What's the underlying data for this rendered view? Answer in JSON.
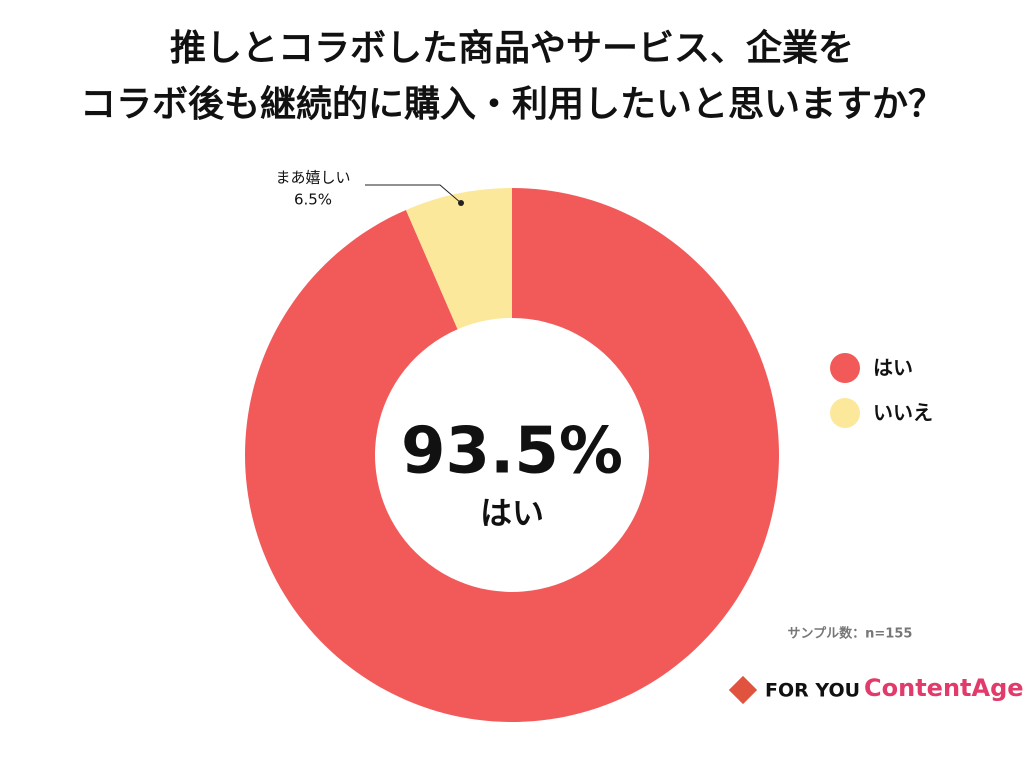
{
  "chart_data": {
    "type": "donut",
    "title": [
      "推しとコラボした商品やサービス、企業を",
      "コラボ後も継続的に購入・利用したいと思いますか？"
    ],
    "categories": [
      "はい",
      "いいえ"
    ],
    "values": [
      93.5,
      6.5
    ],
    "value_labels": [
      "93.5%",
      "6.5%"
    ],
    "colors": [
      "#f25a5a",
      "#fce89a"
    ],
    "annotation": "まあ嬉しい",
    "legend": "right",
    "note": "サンプル数：n=155",
    "logo": [
      "FOR YOU",
      "ContentAge"
    ]
  }
}
